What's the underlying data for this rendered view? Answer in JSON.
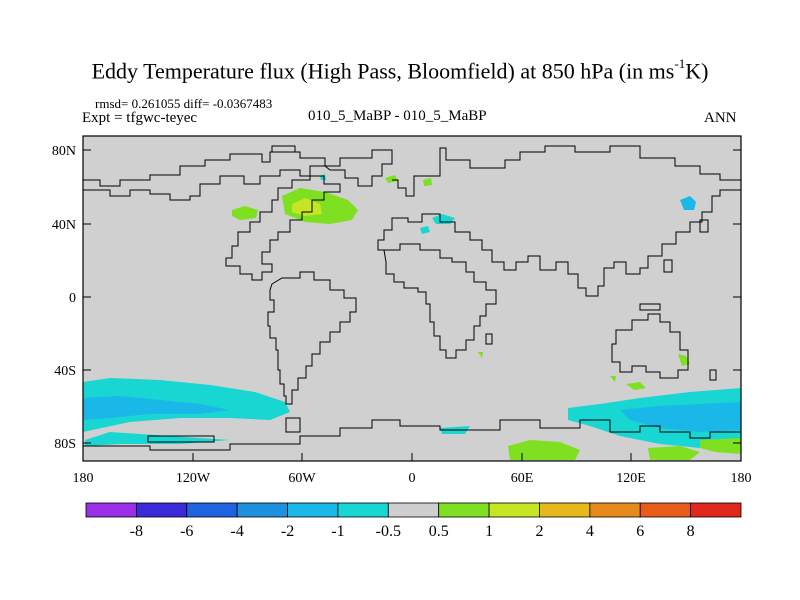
{
  "title": {
    "main": "Eddy Temperature flux (High Pass, Bloomfield) at 850 hPa (in ms",
    "superscript": "-1",
    "suffix": "K)"
  },
  "subtitle": {
    "stats": "rmsd= 0.261055 diff= -0.0367483",
    "expt": "Expt = tfgwc-teyec",
    "center": "010_5_MaBP - 010_5_MaBP",
    "season": "ANN"
  },
  "axes": {
    "y_ticks": [
      "80N",
      "40N",
      "0",
      "40S",
      "80S"
    ],
    "x_ticks": [
      "180",
      "120W",
      "60W",
      "0",
      "60E",
      "120E",
      "180"
    ]
  },
  "colorbar": {
    "labels": [
      "-8",
      "-6",
      "-4",
      "-2",
      "-1",
      "-0.5",
      "0.5",
      "1",
      "2",
      "4",
      "6",
      "8"
    ],
    "colors": [
      "#9b30e8",
      "#3a2ad8",
      "#1f63de",
      "#1e90e0",
      "#1ab8e8",
      "#18d6d2",
      "#cfcfcf",
      "#7ee020",
      "#c6e624",
      "#e6b81c",
      "#e68a1c",
      "#e85c1a",
      "#e0281c"
    ]
  },
  "colors": {
    "background_field": "#d0d0d0",
    "coast": "#000000"
  }
}
